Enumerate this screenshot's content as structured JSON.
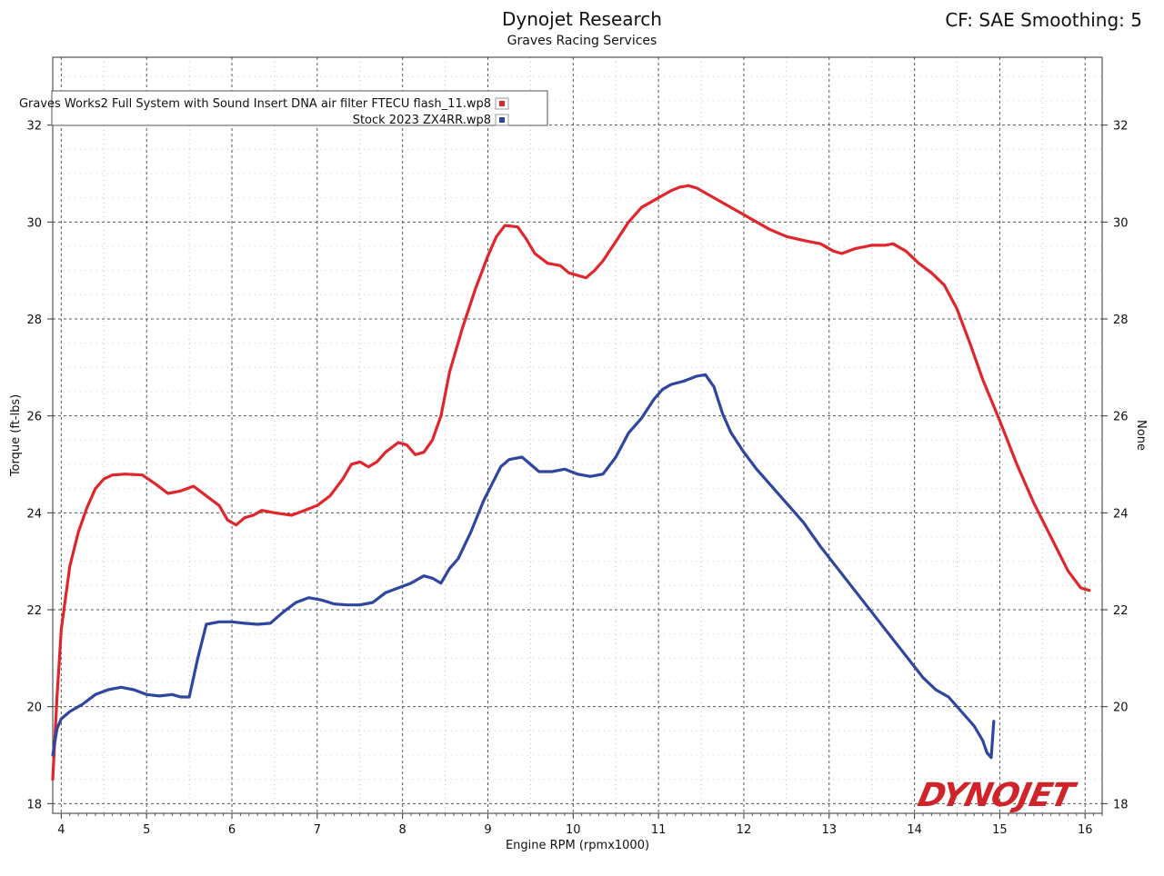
{
  "header": {
    "title": "Dynojet Research",
    "subtitle": "Graves Racing Services",
    "cf_text": "CF: SAE Smoothing: 5"
  },
  "logo_text": "DYNOJET",
  "chart_data": {
    "type": "line",
    "xlabel": "Engine RPM (rpmx1000)",
    "ylabel": "Torque (ft-lbs)",
    "y2label": "None",
    "xlim": [
      3.9,
      16.2
    ],
    "ylim": [
      17.8,
      33.4
    ],
    "x_ticks": [
      4,
      5,
      6,
      7,
      8,
      9,
      10,
      11,
      12,
      13,
      14,
      15,
      16
    ],
    "y_ticks": [
      18,
      20,
      22,
      24,
      26,
      28,
      30,
      32
    ],
    "grid": true,
    "legend_position": "top-left",
    "series": [
      {
        "name": "Graves Works2 Full System with Sound Insert DNA air filter FTECU flash_11.wp8",
        "color": "#e0262d",
        "x": [
          3.9,
          3.95,
          4.0,
          4.1,
          4.2,
          4.3,
          4.4,
          4.5,
          4.6,
          4.75,
          4.95,
          5.1,
          5.25,
          5.4,
          5.55,
          5.7,
          5.85,
          5.95,
          6.05,
          6.15,
          6.25,
          6.35,
          6.5,
          6.7,
          6.85,
          7.0,
          7.15,
          7.3,
          7.4,
          7.5,
          7.6,
          7.7,
          7.8,
          7.95,
          8.05,
          8.15,
          8.25,
          8.35,
          8.45,
          8.55,
          8.7,
          8.85,
          9.0,
          9.1,
          9.2,
          9.35,
          9.45,
          9.55,
          9.7,
          9.85,
          9.95,
          10.05,
          10.15,
          10.25,
          10.35,
          10.5,
          10.65,
          10.8,
          10.95,
          11.05,
          11.15,
          11.25,
          11.35,
          11.45,
          11.6,
          11.75,
          11.9,
          12.0,
          12.15,
          12.3,
          12.5,
          12.7,
          12.9,
          13.05,
          13.15,
          13.3,
          13.5,
          13.65,
          13.75,
          13.9,
          14.05,
          14.2,
          14.35,
          14.5,
          14.65,
          14.8,
          15.0,
          15.2,
          15.4,
          15.6,
          15.8,
          15.95,
          16.05
        ],
        "values": [
          18.5,
          20.2,
          21.6,
          22.9,
          23.6,
          24.1,
          24.5,
          24.7,
          24.78,
          24.8,
          24.78,
          24.6,
          24.4,
          24.45,
          24.55,
          24.35,
          24.15,
          23.85,
          23.75,
          23.9,
          23.95,
          24.05,
          24.0,
          23.95,
          24.05,
          24.15,
          24.35,
          24.7,
          25.0,
          25.05,
          24.95,
          25.05,
          25.25,
          25.45,
          25.4,
          25.2,
          25.25,
          25.5,
          26.0,
          26.9,
          27.8,
          28.6,
          29.3,
          29.7,
          29.93,
          29.9,
          29.65,
          29.35,
          29.15,
          29.1,
          28.95,
          28.9,
          28.85,
          29.0,
          29.2,
          29.6,
          30.0,
          30.3,
          30.45,
          30.55,
          30.65,
          30.72,
          30.75,
          30.7,
          30.55,
          30.4,
          30.25,
          30.15,
          30.0,
          29.85,
          29.7,
          29.62,
          29.55,
          29.4,
          29.35,
          29.45,
          29.52,
          29.52,
          29.55,
          29.4,
          29.15,
          28.95,
          28.7,
          28.2,
          27.5,
          26.75,
          25.9,
          25.0,
          24.2,
          23.5,
          22.8,
          22.45,
          22.4
        ]
      },
      {
        "name": "Stock 2023 ZX4RR.wp8",
        "color": "#2f46a0",
        "x": [
          3.9,
          3.95,
          4.0,
          4.1,
          4.25,
          4.4,
          4.55,
          4.7,
          4.85,
          5.0,
          5.15,
          5.3,
          5.4,
          5.5,
          5.6,
          5.7,
          5.85,
          6.0,
          6.15,
          6.3,
          6.45,
          6.6,
          6.75,
          6.9,
          7.05,
          7.2,
          7.35,
          7.5,
          7.65,
          7.8,
          7.95,
          8.1,
          8.25,
          8.35,
          8.45,
          8.55,
          8.65,
          8.8,
          8.95,
          9.05,
          9.15,
          9.25,
          9.4,
          9.5,
          9.6,
          9.75,
          9.9,
          10.05,
          10.2,
          10.35,
          10.5,
          10.65,
          10.8,
          10.95,
          11.05,
          11.15,
          11.3,
          11.45,
          11.55,
          11.65,
          11.75,
          11.85,
          12.0,
          12.15,
          12.3,
          12.5,
          12.7,
          12.9,
          13.1,
          13.3,
          13.5,
          13.7,
          13.9,
          14.1,
          14.25,
          14.4,
          14.55,
          14.7,
          14.8,
          14.85,
          14.9,
          14.93
        ],
        "values": [
          19.0,
          19.55,
          19.75,
          19.9,
          20.05,
          20.25,
          20.35,
          20.4,
          20.35,
          20.25,
          20.22,
          20.25,
          20.2,
          20.2,
          21.0,
          21.7,
          21.75,
          21.75,
          21.72,
          21.7,
          21.72,
          21.95,
          22.15,
          22.25,
          22.2,
          22.12,
          22.1,
          22.1,
          22.15,
          22.35,
          22.45,
          22.55,
          22.7,
          22.65,
          22.55,
          22.85,
          23.05,
          23.6,
          24.25,
          24.6,
          24.95,
          25.1,
          25.15,
          25.0,
          24.85,
          24.85,
          24.9,
          24.8,
          24.75,
          24.8,
          25.15,
          25.65,
          25.95,
          26.35,
          26.55,
          26.65,
          26.72,
          26.82,
          26.85,
          26.6,
          26.05,
          25.65,
          25.25,
          24.9,
          24.6,
          24.2,
          23.8,
          23.3,
          22.85,
          22.4,
          21.95,
          21.5,
          21.05,
          20.6,
          20.35,
          20.2,
          19.9,
          19.6,
          19.3,
          19.05,
          18.95,
          19.7
        ]
      }
    ]
  }
}
